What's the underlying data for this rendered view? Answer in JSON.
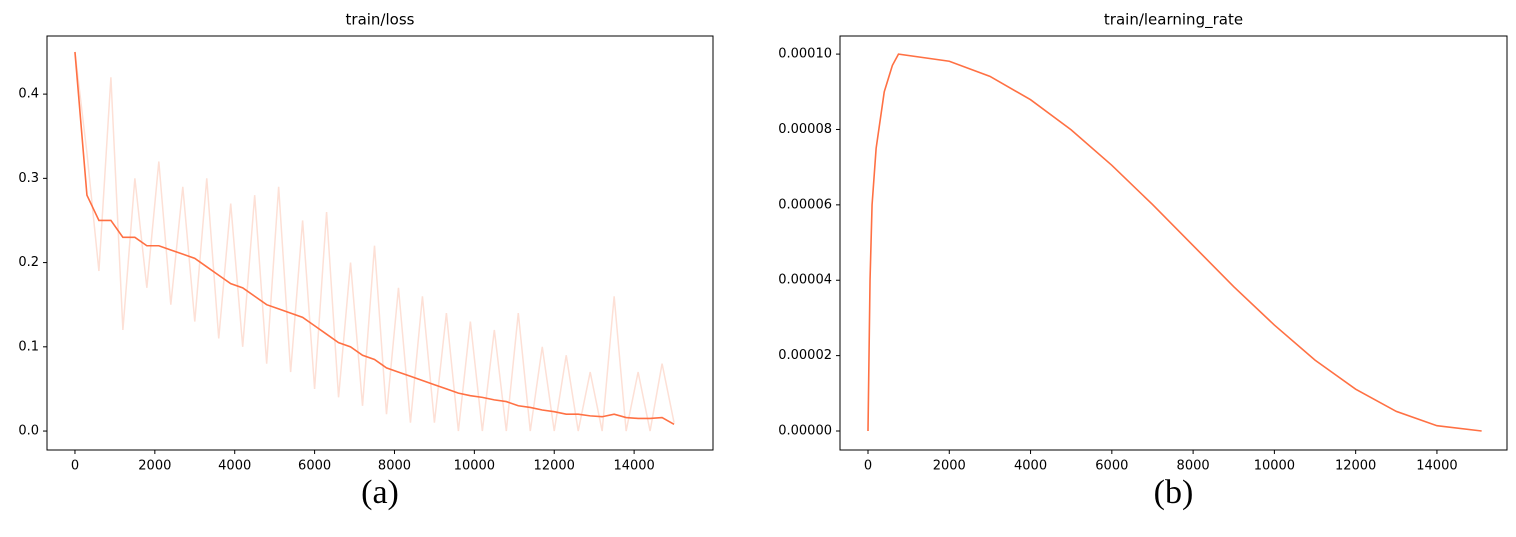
{
  "chart_data": [
    {
      "type": "line",
      "title": "train/loss",
      "caption": "(a)",
      "x": [
        0,
        300,
        600,
        900,
        1200,
        1500,
        1800,
        2100,
        2400,
        2700,
        3000,
        3300,
        3600,
        3900,
        4200,
        4500,
        4800,
        5100,
        5400,
        5700,
        6000,
        6300,
        6600,
        6900,
        7200,
        7500,
        7800,
        8100,
        8400,
        8700,
        9000,
        9300,
        9600,
        9900,
        10200,
        10500,
        10800,
        11100,
        11400,
        11700,
        12000,
        12300,
        12600,
        12900,
        13200,
        13500,
        13800,
        14100,
        14400,
        14700,
        15000
      ],
      "series": [
        {
          "color": "#fde0d6",
          "values": [
            0.45,
            0.33,
            0.19,
            0.42,
            0.12,
            0.3,
            0.17,
            0.32,
            0.15,
            0.29,
            0.13,
            0.3,
            0.11,
            0.27,
            0.1,
            0.28,
            0.08,
            0.29,
            0.07,
            0.25,
            0.05,
            0.26,
            0.04,
            0.2,
            0.03,
            0.22,
            0.02,
            0.17,
            0.01,
            0.16,
            0.01,
            0.14,
            0.0,
            0.13,
            0.0,
            0.12,
            0.0,
            0.14,
            0.0,
            0.1,
            0.0,
            0.09,
            0.0,
            0.07,
            0.0,
            0.16,
            0.0,
            0.07,
            0.0,
            0.08,
            0.01
          ]
        },
        {
          "color": "#ff7043",
          "values": [
            0.45,
            0.28,
            0.25,
            0.25,
            0.23,
            0.23,
            0.22,
            0.22,
            0.215,
            0.21,
            0.205,
            0.195,
            0.185,
            0.175,
            0.17,
            0.16,
            0.15,
            0.145,
            0.14,
            0.135,
            0.125,
            0.115,
            0.105,
            0.1,
            0.09,
            0.085,
            0.075,
            0.07,
            0.065,
            0.06,
            0.055,
            0.05,
            0.045,
            0.042,
            0.04,
            0.037,
            0.035,
            0.03,
            0.028,
            0.025,
            0.023,
            0.02,
            0.02,
            0.018,
            0.017,
            0.02,
            0.016,
            0.015,
            0.015,
            0.016,
            0.008
          ]
        }
      ],
      "xlim": [
        -700,
        15975
      ],
      "ylim": [
        -0.0225,
        0.469
      ],
      "xticks": [
        0,
        2000,
        4000,
        6000,
        8000,
        10000,
        12000,
        14000
      ],
      "yticks": [
        {
          "value": 0,
          "label": "0.0"
        },
        {
          "value": 0.1,
          "label": "0.1"
        },
        {
          "value": 0.2,
          "label": "0.2"
        },
        {
          "value": 0.3,
          "label": "0.3"
        },
        {
          "value": 0.4,
          "label": "0.4"
        }
      ]
    },
    {
      "type": "line",
      "title": "train/learning_rate",
      "caption": "(b)",
      "x": [
        0,
        50,
        100,
        200,
        400,
        600,
        750,
        2000,
        3000,
        4000,
        5000,
        6000,
        7000,
        8000,
        9000,
        10000,
        11000,
        12000,
        13000,
        14000,
        15100
      ],
      "series": [
        {
          "color": "#ff7043",
          "values": [
            0,
            4e-05,
            6e-05,
            7.5e-05,
            9e-05,
            9.7e-05,
            0.0001,
            9.81e-05,
            9.41e-05,
            8.79e-05,
            7.99e-05,
            7.05e-05,
            6.01e-05,
            4.92e-05,
            3.83e-05,
            2.81e-05,
            1.88e-05,
            1.11e-05,
            5.2e-06,
            1.4e-06,
            0
          ]
        }
      ],
      "xlim": [
        -689,
        15724
      ],
      "ylim": [
        -5.04e-06,
        0.0001048
      ],
      "xticks": [
        0,
        2000,
        4000,
        6000,
        8000,
        10000,
        12000,
        14000
      ],
      "yticks": [
        {
          "value": 0,
          "label": "0.00000"
        },
        {
          "value": 2e-05,
          "label": "0.00002"
        },
        {
          "value": 4e-05,
          "label": "0.00004"
        },
        {
          "value": 6e-05,
          "label": "0.00006"
        },
        {
          "value": 8e-05,
          "label": "0.00008"
        },
        {
          "value": 0.0001,
          "label": "0.00010"
        }
      ]
    }
  ]
}
